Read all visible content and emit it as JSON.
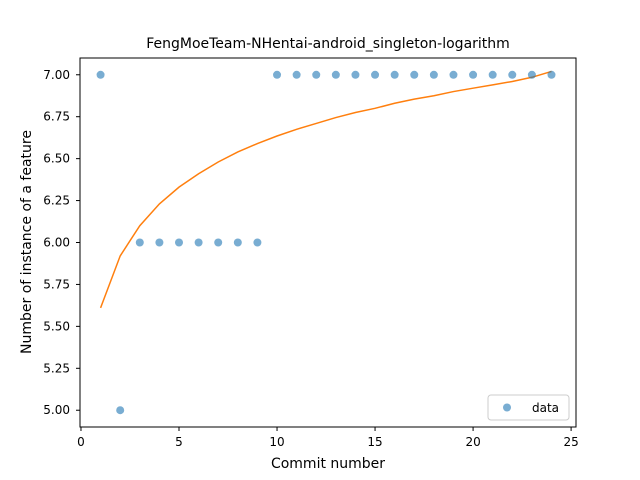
{
  "chart_data": {
    "type": "scatter",
    "title": "FengMoeTeam-NHentai-android_singleton-logarithm",
    "xlabel": "Commit number",
    "ylabel": "Number of instance of a feature",
    "xlim": [
      -0.05,
      25.25
    ],
    "ylim": [
      4.9,
      7.1
    ],
    "x_ticks": [
      0,
      5,
      10,
      15,
      20,
      25
    ],
    "x_tick_labels": [
      "0",
      "5",
      "10",
      "15",
      "20",
      "25"
    ],
    "y_ticks": [
      5.0,
      5.25,
      5.5,
      5.75,
      6.0,
      6.25,
      6.5,
      6.75,
      7.0
    ],
    "y_tick_labels": [
      "5.00",
      "5.25",
      "5.50",
      "5.75",
      "6.00",
      "6.25",
      "6.50",
      "6.75",
      "7.00"
    ],
    "grid": false,
    "legend": {
      "position": "lower-right",
      "entries": [
        "data"
      ]
    },
    "series": [
      {
        "name": "data",
        "kind": "scatter",
        "color": "#1f77b4",
        "x": [
          1,
          2,
          3,
          4,
          5,
          6,
          7,
          8,
          9,
          10,
          11,
          12,
          13,
          14,
          15,
          16,
          17,
          18,
          19,
          20,
          21,
          22,
          23,
          24
        ],
        "y": [
          7,
          5,
          6,
          6,
          6,
          6,
          6,
          6,
          6,
          7,
          7,
          7,
          7,
          7,
          7,
          7,
          7,
          7,
          7,
          7,
          7,
          7,
          7,
          7
        ]
      },
      {
        "kind": "line",
        "color": "#ff7f0e",
        "x": [
          1,
          2,
          3,
          4,
          5,
          6,
          7,
          8,
          9,
          10,
          11,
          12,
          13,
          14,
          15,
          16,
          17,
          18,
          19,
          20,
          21,
          22,
          23,
          24
        ],
        "y": [
          5.61,
          5.92,
          6.1,
          6.23,
          6.33,
          6.41,
          6.48,
          6.54,
          6.59,
          6.635,
          6.675,
          6.71,
          6.745,
          6.775,
          6.8,
          6.83,
          6.855,
          6.875,
          6.9,
          6.92,
          6.94,
          6.96,
          6.985,
          7.02
        ]
      }
    ]
  }
}
